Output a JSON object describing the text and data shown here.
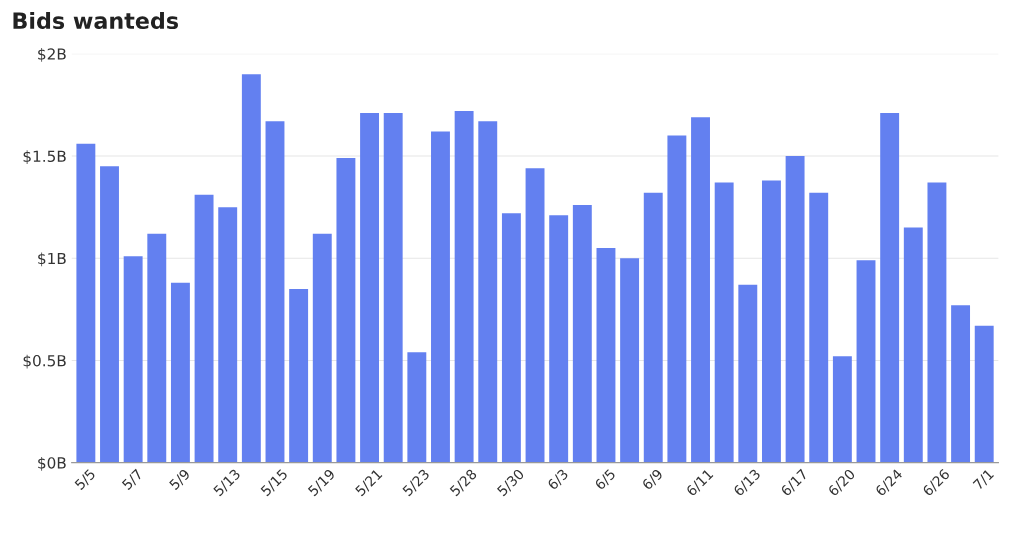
{
  "chart_data": {
    "type": "bar",
    "title": "Bids wanteds",
    "categories": [
      "5/5",
      null,
      "5/7",
      null,
      "5/9",
      null,
      "5/13",
      null,
      "5/15",
      null,
      "5/19",
      null,
      "5/21",
      null,
      "5/23",
      null,
      "5/28",
      null,
      "5/30",
      null,
      "6/3",
      null,
      "6/5",
      null,
      "6/9",
      null,
      "6/11",
      null,
      "6/13",
      null,
      "6/17",
      null,
      "6/20",
      null,
      "6/24",
      null,
      "6/26",
      null,
      "7/1"
    ],
    "values": [
      1.56,
      1.45,
      1.01,
      1.12,
      0.88,
      1.31,
      1.25,
      1.9,
      1.67,
      0.85,
      1.12,
      1.49,
      1.71,
      1.71,
      0.54,
      1.62,
      1.72,
      1.67,
      1.22,
      1.44,
      1.21,
      1.26,
      1.05,
      1.0,
      1.32,
      1.6,
      1.69,
      1.37,
      0.87,
      1.38,
      1.5,
      1.32,
      0.52,
      0.99,
      1.71,
      1.15,
      1.37,
      0.77,
      0.67
    ],
    "color": "#6380f0",
    "ylim": [
      0,
      2
    ],
    "yticks": [
      {
        "value": 0,
        "label": "$0B"
      },
      {
        "value": 0.5,
        "label": "$0.5B"
      },
      {
        "value": 1,
        "label": "$1B"
      },
      {
        "value": 1.5,
        "label": "$1.5B"
      },
      {
        "value": 2,
        "label": "$2B"
      }
    ],
    "grid": "y"
  }
}
